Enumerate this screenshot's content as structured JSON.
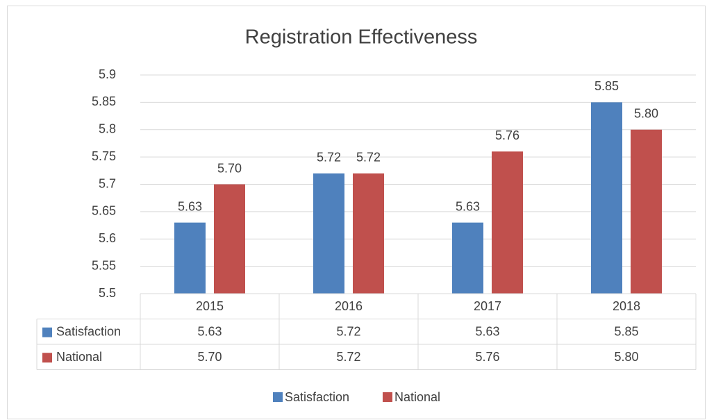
{
  "chart_data": {
    "type": "bar",
    "title": "Registration Effectiveness",
    "categories": [
      "2015",
      "2016",
      "2017",
      "2018"
    ],
    "series": [
      {
        "name": "Satisfaction",
        "color": "#4f81bd",
        "values": [
          5.63,
          5.72,
          5.63,
          5.85
        ],
        "value_labels": [
          "5.63",
          "5.72",
          "5.63",
          "5.85"
        ]
      },
      {
        "name": "National",
        "color": "#c0504d",
        "values": [
          5.7,
          5.72,
          5.76,
          5.8
        ],
        "value_labels": [
          "5.70",
          "5.72",
          "5.76",
          "5.80"
        ]
      }
    ],
    "ylim": [
      5.5,
      5.9
    ],
    "yticks": [
      5.5,
      5.55,
      5.6,
      5.65,
      5.7,
      5.75,
      5.8,
      5.85,
      5.9
    ],
    "grid": true,
    "data_table": true,
    "legend": "bottom"
  }
}
